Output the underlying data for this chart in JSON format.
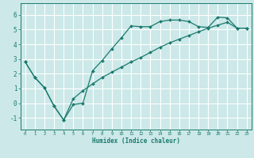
{
  "xlabel": "Humidex (Indice chaleur)",
  "background_color": "#cce8e8",
  "line_color": "#1a7a6e",
  "grid_color": "#ffffff",
  "xlim": [
    -0.5,
    23.5
  ],
  "ylim": [
    -1.8,
    6.8
  ],
  "xticks": [
    0,
    1,
    2,
    3,
    4,
    5,
    6,
    7,
    8,
    9,
    10,
    11,
    12,
    13,
    14,
    15,
    16,
    17,
    18,
    19,
    20,
    21,
    22,
    23
  ],
  "yticks": [
    -1,
    0,
    1,
    2,
    3,
    4,
    5,
    6
  ],
  "line1_x": [
    0,
    1,
    2,
    3,
    4,
    5,
    6,
    7,
    8,
    9,
    10,
    11,
    12,
    13,
    14,
    15,
    16,
    17,
    18,
    19,
    20,
    21,
    22,
    23
  ],
  "line1_y": [
    2.8,
    1.75,
    1.05,
    -0.2,
    -1.15,
    -0.1,
    0.0,
    2.2,
    2.9,
    3.7,
    4.45,
    5.25,
    5.2,
    5.2,
    5.55,
    5.65,
    5.65,
    5.55,
    5.2,
    5.15,
    5.85,
    5.8,
    5.1,
    5.1
  ],
  "line2_x": [
    0,
    1,
    2,
    3,
    4,
    5,
    6,
    7,
    8,
    9,
    10,
    11,
    12,
    13,
    14,
    15,
    16,
    17,
    18,
    19,
    20,
    21,
    22,
    23
  ],
  "line2_y": [
    2.8,
    1.75,
    1.05,
    -0.2,
    -1.15,
    0.3,
    0.85,
    1.3,
    1.75,
    2.1,
    2.45,
    2.8,
    3.1,
    3.45,
    3.8,
    4.1,
    4.35,
    4.6,
    4.85,
    5.1,
    5.3,
    5.5,
    5.1,
    5.1
  ]
}
